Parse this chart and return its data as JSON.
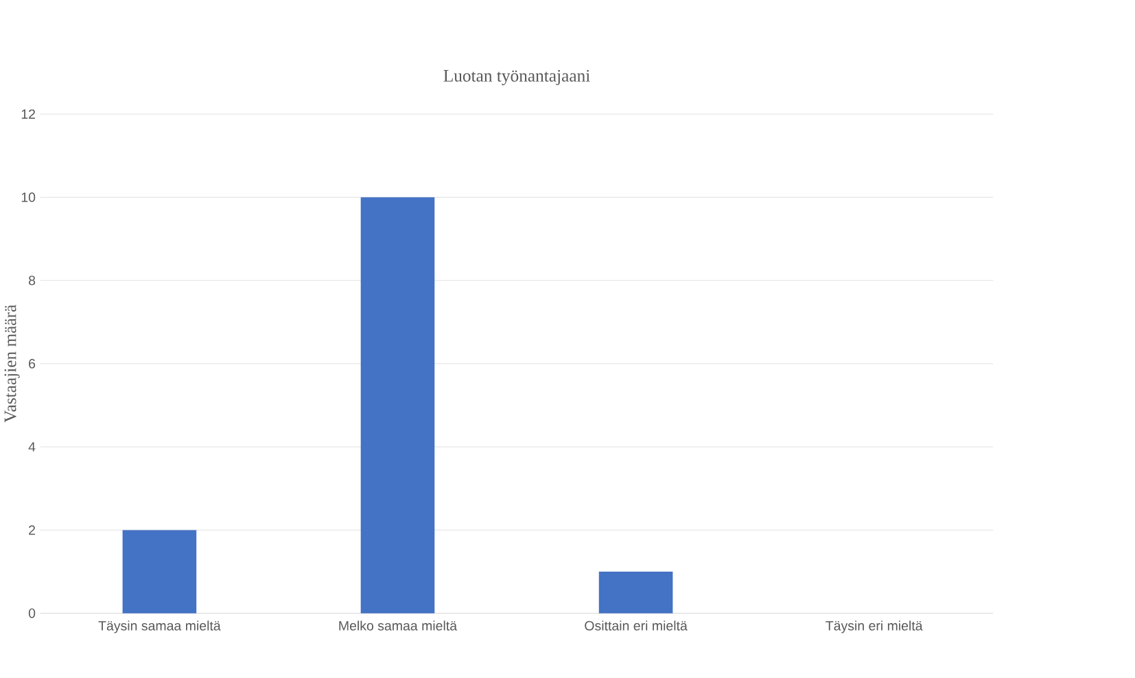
{
  "chart_data": {
    "type": "bar",
    "title": "Luotan työnantajaani",
    "ylabel": "Vastaajien määrä",
    "categories": [
      "Täysin samaa mieltä",
      "Melko samaa mieltä",
      "Osittain eri mieltä",
      "Täysin eri mieltä"
    ],
    "values": [
      2,
      10,
      1,
      0
    ],
    "color": "#4472c4",
    "ylim": [
      0,
      12
    ],
    "yticks": [
      0,
      2,
      4,
      6,
      8,
      10,
      12
    ],
    "grid": "y"
  }
}
